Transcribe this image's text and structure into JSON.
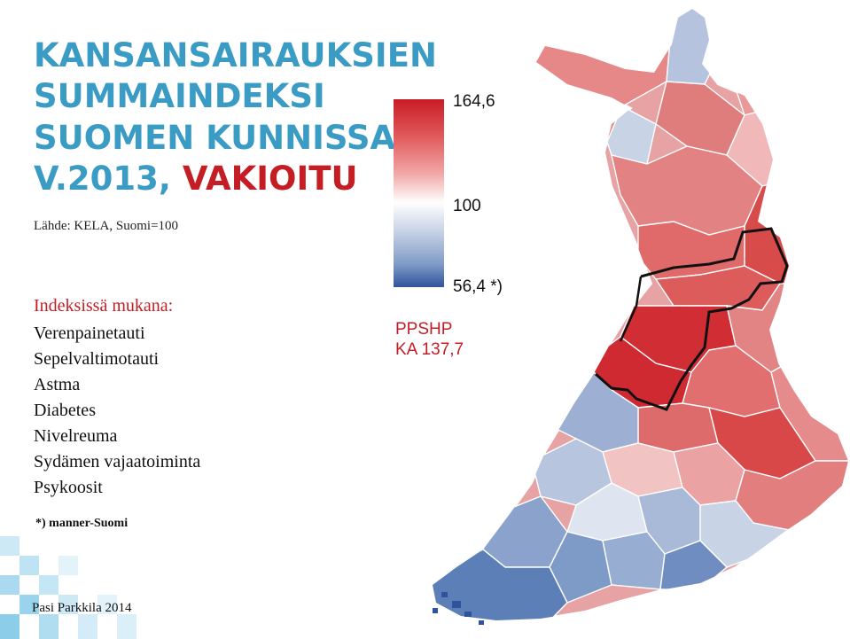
{
  "title": {
    "line1": "KANSANSAIRAUKSIEN",
    "line2": "SUMMAINDEKSI",
    "line3": "SUOMEN KUNNISSA",
    "line4_prefix": "V.2013, ",
    "line4_highlight": "VAKIOITU"
  },
  "source": "Lähde: KELA, Suomi=100",
  "index_heading": "Indeksissä mukana:",
  "conditions": [
    "Verenpainetauti",
    "Sepelvaltimotauti",
    "Astma",
    "Diabetes",
    "Nivelreuma",
    "Sydämen vajaatoiminta",
    "Psykoosit"
  ],
  "footnote": "*) manner-Suomi",
  "author": "Pasi Parkkila 2014",
  "scale": {
    "max_label": "164,6",
    "mid_label": "100",
    "min_label": "56,4 *)",
    "max_value": 164.6,
    "mid_value": 100,
    "min_value": 56.4,
    "colors": {
      "high": "#c81c26",
      "mid": "#ffffff",
      "low": "#2f539d"
    }
  },
  "region": {
    "name": "PPSHP",
    "value_label": "KA 137,7"
  },
  "colors": {
    "title_blue": "#3a9bc4",
    "accent_red": "#c41e24",
    "border_black": "#111111"
  }
}
